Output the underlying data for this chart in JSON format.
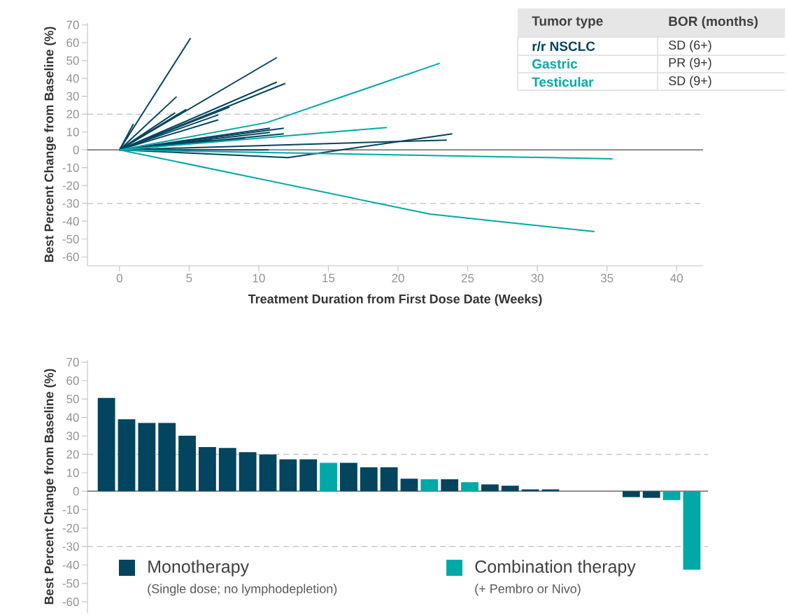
{
  "chart_data": [
    {
      "type": "line",
      "xlabel": "Treatment Duration from First Dose Date (Weeks)",
      "ylabel": "Best Percent Change from Baseline (%)",
      "xlim": [
        -2.3,
        41.9
      ],
      "xticks": [
        0,
        5,
        10,
        15,
        20,
        25,
        30,
        35,
        40
      ],
      "ylim": [
        -65,
        71
      ],
      "yticks": [
        -60,
        -50,
        -40,
        -30,
        -20,
        -10,
        0,
        10,
        20,
        30,
        40,
        50,
        60,
        70
      ],
      "series": [
        {
          "color": "#03445e",
          "x": [
            0,
            5.1
          ],
          "values": [
            0,
            62.6
          ]
        },
        {
          "color": "#03445e",
          "x": [
            0,
            11.3
          ],
          "values": [
            0,
            51.7
          ]
        },
        {
          "color": "#03445e",
          "x": [
            0,
            11.3
          ],
          "values": [
            0,
            38.0
          ]
        },
        {
          "color": "#03445e",
          "x": [
            0,
            11.9
          ],
          "values": [
            0,
            37.2
          ]
        },
        {
          "color": "#03445e",
          "x": [
            0,
            4.1
          ],
          "values": [
            0,
            29.8
          ]
        },
        {
          "color": "#03445e",
          "x": [
            0,
            1.0
          ],
          "values": [
            0,
            14.5
          ]
        },
        {
          "color": "#03445e",
          "x": [
            0,
            4.0
          ],
          "values": [
            0,
            20.8
          ]
        },
        {
          "color": "#03445e",
          "x": [
            0,
            4.8
          ],
          "values": [
            0,
            22.7
          ]
        },
        {
          "color": "#03445e",
          "x": [
            0,
            7.9
          ],
          "values": [
            0,
            23.9
          ]
        },
        {
          "color": "#03445e",
          "x": [
            0,
            7.1
          ],
          "values": [
            0,
            19.6
          ]
        },
        {
          "color": "#03445e",
          "x": [
            0,
            7.1
          ],
          "values": [
            0,
            16.8
          ]
        },
        {
          "color": "#03445e",
          "x": [
            0,
            10.8
          ],
          "values": [
            0,
            12.1
          ]
        },
        {
          "color": "#03445e",
          "x": [
            0,
            11.8
          ],
          "values": [
            0,
            12.1
          ]
        },
        {
          "color": "#03445e",
          "x": [
            0,
            10.8
          ],
          "values": [
            0,
            9.8
          ]
        },
        {
          "color": "#03445e",
          "x": [
            0,
            11.8
          ],
          "values": [
            0,
            9.0
          ]
        },
        {
          "color": "#03445e",
          "x": [
            0,
            6.6
          ],
          "values": [
            0,
            5.5
          ]
        },
        {
          "color": "#03445e",
          "x": [
            0,
            9.0
          ],
          "values": [
            0,
            6.3
          ]
        },
        {
          "color": "#03445e",
          "x": [
            0,
            10.7
          ],
          "values": [
            0,
            0
          ]
        },
        {
          "color": "#03445e",
          "x": [
            0,
            12.1,
            23.9
          ],
          "values": [
            0,
            -4.3,
            9.0
          ]
        },
        {
          "color": "#03445e",
          "x": [
            0,
            23.5
          ],
          "values": [
            0,
            5.5
          ]
        },
        {
          "color": "#00a9a8",
          "x": [
            0,
            10.6,
            23.0
          ],
          "values": [
            0,
            15.3,
            48.5
          ]
        },
        {
          "color": "#00a9a8",
          "x": [
            0,
            19.2
          ],
          "values": [
            0,
            12.5
          ]
        },
        {
          "color": "#00a9a8",
          "x": [
            0,
            35.4
          ],
          "values": [
            0,
            -5
          ]
        },
        {
          "color": "#00a9a8",
          "x": [
            0,
            22.3,
            34.1
          ],
          "values": [
            0,
            -36,
            -45.8
          ]
        }
      ],
      "ref_lines": [
        {
          "axis": "y",
          "value": 0,
          "color": "#666666",
          "line_style": "solid"
        },
        {
          "axis": "y",
          "value": 20,
          "color": "#c8c8c8",
          "line_style": "dashed"
        },
        {
          "axis": "y",
          "value": -30,
          "color": "#c8c8c8",
          "line_style": "dashed"
        }
      ],
      "annotations": [
        "Tumor type",
        "BOR (months)",
        "r/r NSCLC",
        "SD (6+)",
        "Gastric",
        "PR (9+)",
        "Testicular",
        "SD (9+)"
      ]
    },
    {
      "type": "bar",
      "ylabel": "Best Percent Change from Baseline (%)",
      "ylim": [
        -66,
        71
      ],
      "yticks": [
        -60,
        -50,
        -40,
        -30,
        -20,
        -10,
        0,
        10,
        20,
        30,
        40,
        50,
        60,
        70
      ],
      "categories": [
        null,
        null,
        null,
        null,
        null,
        null,
        null,
        null,
        null,
        null,
        null,
        null,
        null,
        null,
        null,
        null,
        null,
        null,
        null,
        null,
        null,
        null,
        null,
        null,
        null,
        null,
        null,
        null,
        null,
        null
      ],
      "series": [
        {
          "name": "Monotherapy",
          "color": "#03445e",
          "values": [
            50.6,
            39.0,
            37.0,
            37.0,
            30.1,
            23.9,
            23.5,
            21.2,
            20.0,
            17.3,
            17.3,
            null,
            15.4,
            13.0,
            13.0,
            6.8,
            null,
            6.5,
            null,
            3.7,
            3.0,
            1.0,
            1.0,
            null,
            null,
            null,
            -3.2,
            -3.6,
            null,
            null
          ]
        },
        {
          "name": "Combination therapy",
          "color": "#00a9a8",
          "values": [
            null,
            null,
            null,
            null,
            null,
            null,
            null,
            null,
            null,
            null,
            null,
            15.4,
            null,
            null,
            null,
            null,
            6.5,
            null,
            4.9,
            null,
            null,
            null,
            null,
            null,
            null,
            null,
            null,
            null,
            -4.8,
            -42.6
          ]
        }
      ],
      "legend": "bottom",
      "ref_lines": [
        {
          "axis": "y",
          "value": 0,
          "color": "#666666",
          "line_style": "solid"
        },
        {
          "axis": "y",
          "value": 20,
          "color": "#c8c8c8",
          "line_style": "dashed"
        },
        {
          "axis": "y",
          "value": -30,
          "color": "#c8c8c8",
          "line_style": "dashed"
        }
      ],
      "annotations": [
        "(Single dose; no lymphodepletion)",
        "(+ Pembro or Nivo)"
      ]
    }
  ]
}
